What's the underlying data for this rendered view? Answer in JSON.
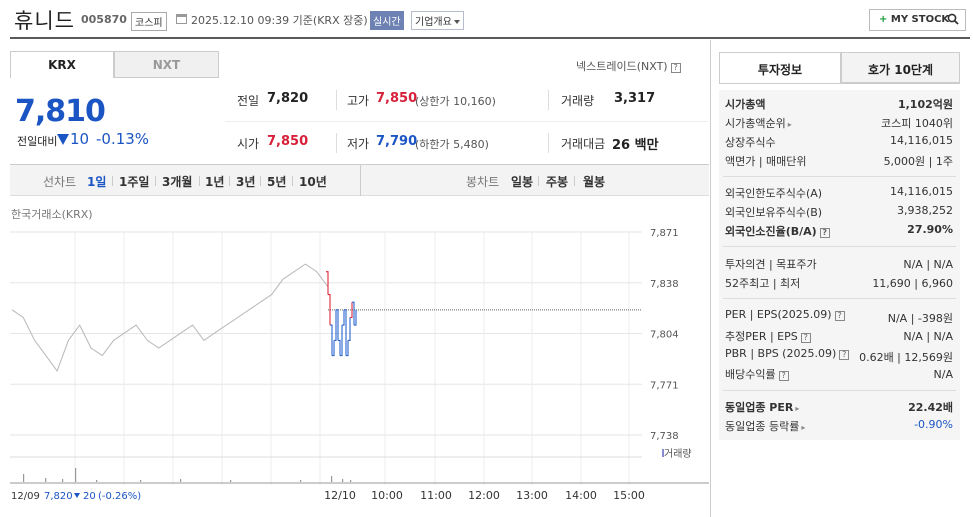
{
  "header": {
    "stock_name": "휴니드",
    "stock_code": "005870",
    "market": "코스피",
    "timestamp": "2025.12.10 09:39 기준(KRX 장중)",
    "realtime": "실시간",
    "company_overview": "기업개요",
    "mystock": "MY STOCK"
  },
  "tabs": {
    "krx": "KRX",
    "nxt": "NXT",
    "nxt_link": "넥스트레이드(NXT)"
  },
  "price": {
    "current": "7,810",
    "change_label": "전일대비",
    "change_value": "10",
    "change_rate": "-0.13%"
  },
  "quote": {
    "prev_label": "전일",
    "prev_value": "7,820",
    "high_label": "고가",
    "high_value": "7,850",
    "upper_limit": "(상한가 10,160)",
    "volume_label": "거래량",
    "volume_value": "3,317",
    "open_label": "시가",
    "open_value": "7,850",
    "low_label": "저가",
    "low_value": "7,790",
    "lower_limit": "(하한가 5,480)",
    "amount_label": "거래대금",
    "amount_value": "26 백만"
  },
  "chart_toolbar": {
    "line_label": "선차트",
    "line_periods": [
      "1일",
      "1주일",
      "3개월",
      "1년",
      "3년",
      "5년",
      "10년"
    ],
    "active_period": "1일",
    "candle_label": "봉차트",
    "candle_periods": [
      "일봉",
      "주봉",
      "월봉"
    ]
  },
  "chart_data": {
    "type": "line",
    "exchange_label": "한국거래소(KRX)",
    "y_ticks": [
      "7,871",
      "7,838",
      "7,804",
      "7,771",
      "7,738"
    ],
    "ylim": [
      7738,
      7871
    ],
    "x_ticks": [
      "12/09",
      "12/10",
      "10:00",
      "11:00",
      "12:00",
      "13:00",
      "14:00",
      "15:00"
    ],
    "prev_close": 7820,
    "volume_label": "거래량",
    "footer": {
      "date": "12/09",
      "price": "7,820",
      "change": "20",
      "rate": "(-0.26%)"
    },
    "series": [
      {
        "values": [
          7820,
          7815,
          7800,
          7790,
          7780,
          7800,
          7810,
          7795,
          7790,
          7800,
          7805,
          7810,
          7800,
          7795,
          7800,
          7805,
          7810,
          7800,
          7805,
          7810,
          7815,
          7820,
          7825,
          7830,
          7840,
          7845,
          7850,
          7845,
          7835
        ]
      },
      {
        "values": [
          7845,
          7830,
          7810,
          7790,
          7800,
          7820,
          7800,
          7790,
          7810,
          7820,
          7790,
          7800,
          7815,
          7825,
          7810,
          7820
        ]
      }
    ]
  },
  "right": {
    "tab_invest": "투자정보",
    "tab_hoga": "호가 10단계",
    "rows": {
      "market_cap_label": "시가총액",
      "market_cap_value": "1,102억원",
      "rank_label": "시가총액순위",
      "rank_value": "코스피 1040위",
      "shares_label": "상장주식수",
      "shares_value": "14,116,015",
      "par_label": "액면가 | 매매단위",
      "par_value": "5,000원 | 1주",
      "foreign_limit_label": "외국인한도주식수(A)",
      "foreign_limit_value": "14,116,015",
      "foreign_hold_label": "외국인보유주식수(B)",
      "foreign_hold_value": "3,938,252",
      "foreign_rate_label": "외국인소진율(B/A)",
      "foreign_rate_value": "27.90%",
      "opinion_label": "투자의견 | 목표주가",
      "opinion_value": "N/A | N/A",
      "w52_label": "52주최고 | 최저",
      "w52_value": "11,690 | 6,960",
      "per_label": "PER | EPS(2025.09)",
      "per_value": "N/A | -398원",
      "eper_label": "추정PER | EPS",
      "eper_value": "N/A | N/A",
      "pbr_label": "PBR | BPS (2025.09)",
      "pbr_value": "0.62배 | 12,569원",
      "div_label": "배당수익률",
      "div_value": "N/A",
      "ind_per_label": "동일업종 PER",
      "ind_per_value": "22.42배",
      "ind_rate_label": "동일업종 등락률",
      "ind_rate_value": "-0.90%"
    }
  }
}
